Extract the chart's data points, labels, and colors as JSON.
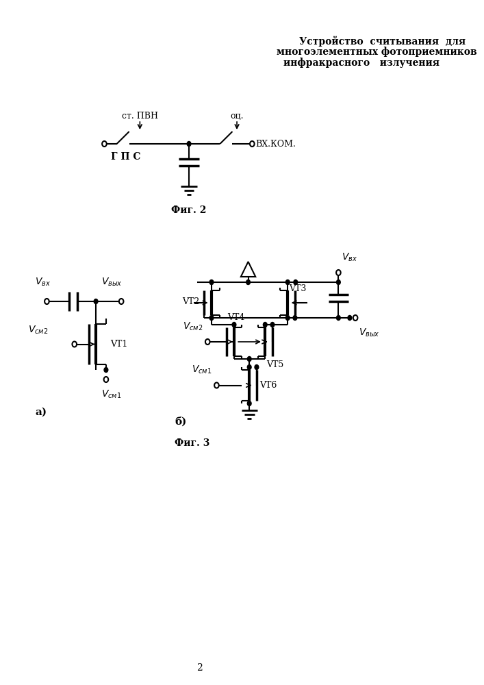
{
  "title_line1": "Устройство  считывания  для",
  "title_line2": "многоэлементных фотоприемников",
  "title_line3": "инфракрасного   излучения",
  "fig2_label": "Фиг. 2",
  "fig3_label": "Фиг. 3",
  "label_a": "а)",
  "label_b": "б)",
  "page_number": "2",
  "bg_color": "#ffffff"
}
